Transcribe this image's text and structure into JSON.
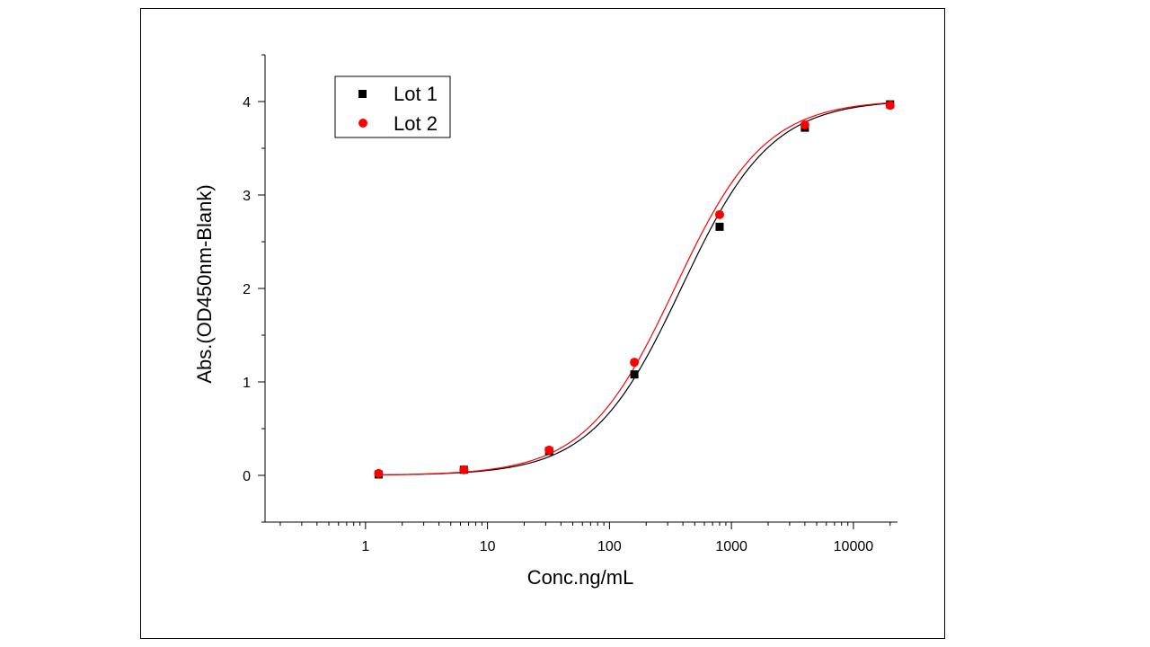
{
  "chart_data": {
    "type": "scatter",
    "title": "",
    "xlabel": "Conc.ng/mL",
    "ylabel": "Abs.(OD450nm-Blank)",
    "xscale": "log",
    "xlim": [
      0.15,
      23000
    ],
    "ylim": [
      -0.5,
      4.5
    ],
    "xticks": [
      1,
      10,
      100,
      1000,
      10000
    ],
    "xtick_labels": [
      "1",
      "10",
      "100",
      "1000",
      "10000"
    ],
    "yticks": [
      0,
      1,
      2,
      3,
      4
    ],
    "ytick_labels": [
      "0",
      "1",
      "2",
      "3",
      "4"
    ],
    "grid": false,
    "legend_position": "top-left",
    "series": [
      {
        "name": "Lot 1",
        "color": "#000000",
        "marker": "square",
        "x": [
          1.28,
          6.4,
          32,
          160,
          800,
          4000,
          20000
        ],
        "y": [
          0.01,
          0.06,
          0.26,
          1.08,
          2.66,
          3.72,
          3.97
        ],
        "fit": {
          "model": "4PL",
          "bottom": 0.0,
          "top": 4.02,
          "ec50": 390,
          "hill": 1.18
        }
      },
      {
        "name": "Lot 2",
        "color": "#ff0000",
        "marker": "circle",
        "x": [
          1.28,
          6.4,
          32,
          160,
          800,
          4000,
          20000
        ],
        "y": [
          0.02,
          0.06,
          0.27,
          1.21,
          2.79,
          3.75,
          3.96
        ],
        "fit": {
          "model": "4PL",
          "bottom": 0.0,
          "top": 4.02,
          "ec50": 345,
          "hill": 1.18
        }
      }
    ]
  }
}
